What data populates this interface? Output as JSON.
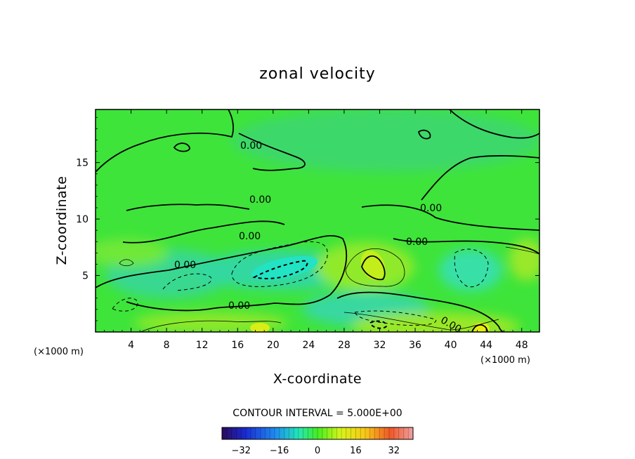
{
  "chart_data": {
    "type": "heatmap",
    "subtype": "filled-contour",
    "title": "zonal velocity",
    "xlabel": "X-coordinate",
    "ylabel": "Z-coordinate",
    "x_units": "(×1000 m)",
    "xlim": [
      0,
      50
    ],
    "ylim": [
      0,
      19.7
    ],
    "x_ticks": [
      "4",
      "8",
      "12",
      "16",
      "20",
      "24",
      "28",
      "32",
      "36",
      "40",
      "44",
      "48"
    ],
    "y_ticks": [
      "5",
      "10",
      "15"
    ],
    "contour_interval_text": "CONTOUR INTERVAL = 5.000E+00",
    "contour_labels": [
      "0.00",
      "0.00",
      "0.00",
      "0.00",
      "0.00",
      "0.00",
      "0.00",
      "0.00"
    ],
    "colorbar": {
      "range": [
        -40,
        40
      ],
      "ticks": [
        "-32",
        "-16",
        "0",
        "16",
        "32"
      ]
    },
    "features": [
      {
        "x": 21,
        "z": 5.6,
        "value": -12,
        "note": "negative core"
      },
      {
        "x": 10,
        "z": 4.3,
        "value": -5
      },
      {
        "x": 33,
        "z": 2.0,
        "value": -6
      },
      {
        "x": 42,
        "z": 5.8,
        "value": -6
      },
      {
        "x": 31,
        "z": 5.8,
        "value": 11,
        "note": "positive core"
      },
      {
        "x": 44,
        "z": 0.5,
        "value": 12
      },
      {
        "x": 19,
        "z": 0.4,
        "value": 9
      },
      {
        "x": 49,
        "z": 6.5,
        "value": 7
      }
    ]
  }
}
